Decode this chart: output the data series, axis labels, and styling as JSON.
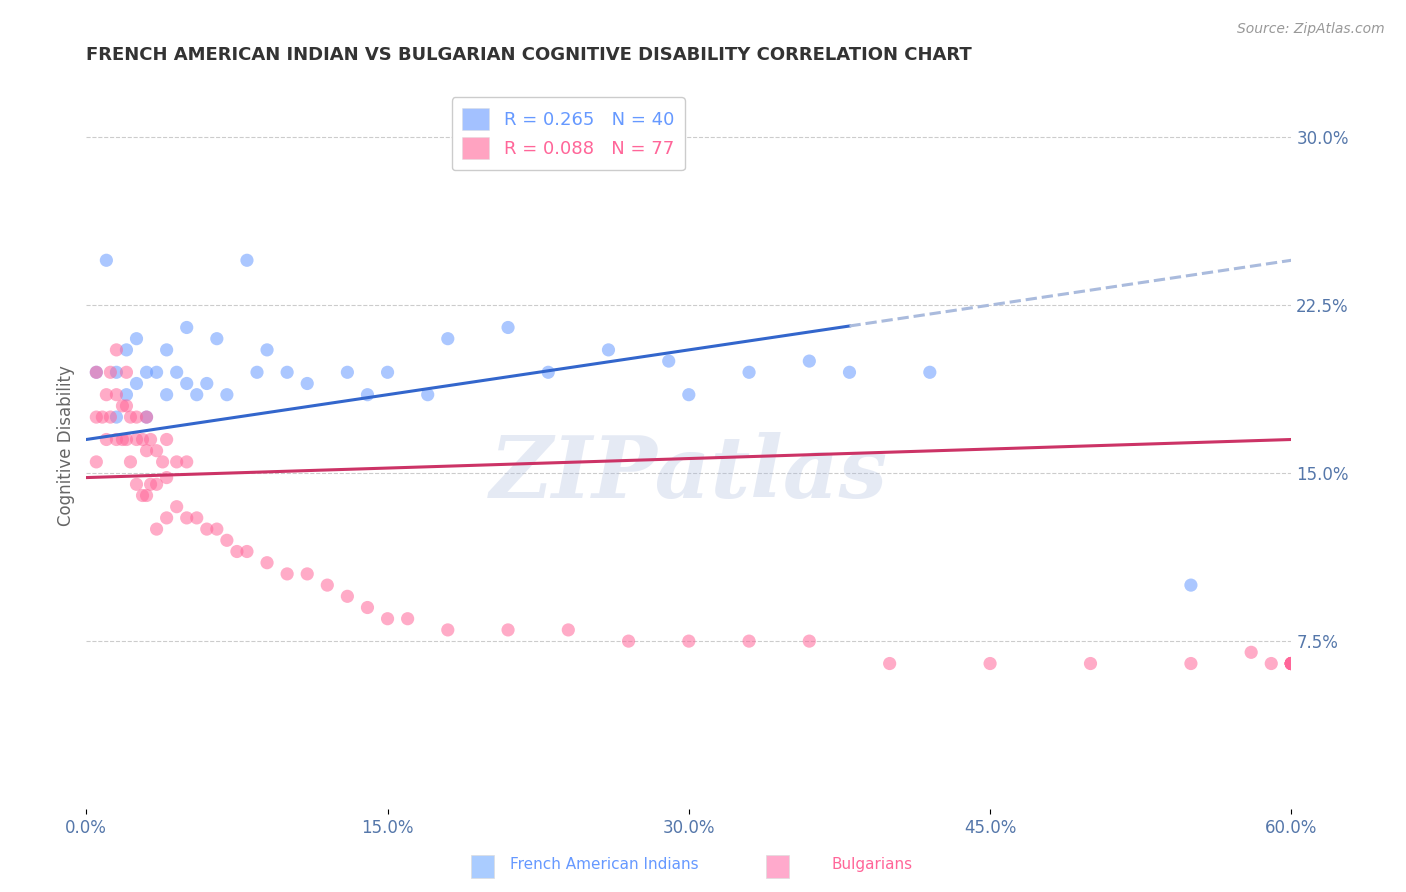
{
  "title": "FRENCH AMERICAN INDIAN VS BULGARIAN COGNITIVE DISABILITY CORRELATION CHART",
  "source": "Source: ZipAtlas.com",
  "ylabel": "Cognitive Disability",
  "xlim": [
    0.0,
    0.6
  ],
  "ylim": [
    0.0,
    0.325
  ],
  "xticks": [
    0.0,
    0.15,
    0.3,
    0.45,
    0.6
  ],
  "xticklabels": [
    "0.0%",
    "15.0%",
    "30.0%",
    "45.0%",
    "60.0%"
  ],
  "yticks": [
    0.075,
    0.15,
    0.225,
    0.3
  ],
  "yticklabels": [
    "7.5%",
    "15.0%",
    "22.5%",
    "30.0%"
  ],
  "legend_entries": [
    {
      "label": "R = 0.265   N = 40",
      "color": "#6699ff"
    },
    {
      "label": "R = 0.088   N = 77",
      "color": "#ff6699"
    }
  ],
  "scatter_blue": {
    "x": [
      0.005,
      0.01,
      0.015,
      0.015,
      0.02,
      0.02,
      0.025,
      0.025,
      0.03,
      0.03,
      0.035,
      0.04,
      0.04,
      0.045,
      0.05,
      0.05,
      0.055,
      0.06,
      0.065,
      0.07,
      0.08,
      0.085,
      0.09,
      0.1,
      0.11,
      0.13,
      0.14,
      0.15,
      0.17,
      0.18,
      0.21,
      0.23,
      0.26,
      0.29,
      0.3,
      0.33,
      0.36,
      0.38,
      0.42,
      0.55
    ],
    "y": [
      0.195,
      0.245,
      0.195,
      0.175,
      0.205,
      0.185,
      0.21,
      0.19,
      0.195,
      0.175,
      0.195,
      0.205,
      0.185,
      0.195,
      0.215,
      0.19,
      0.185,
      0.19,
      0.21,
      0.185,
      0.245,
      0.195,
      0.205,
      0.195,
      0.19,
      0.195,
      0.185,
      0.195,
      0.185,
      0.21,
      0.215,
      0.195,
      0.205,
      0.2,
      0.185,
      0.195,
      0.2,
      0.195,
      0.195,
      0.1
    ],
    "color": "#6699ff",
    "alpha": 0.55,
    "size": 90
  },
  "scatter_pink": {
    "x": [
      0.005,
      0.005,
      0.005,
      0.008,
      0.01,
      0.01,
      0.012,
      0.012,
      0.015,
      0.015,
      0.015,
      0.018,
      0.018,
      0.02,
      0.02,
      0.02,
      0.022,
      0.022,
      0.025,
      0.025,
      0.025,
      0.028,
      0.028,
      0.03,
      0.03,
      0.03,
      0.032,
      0.032,
      0.035,
      0.035,
      0.035,
      0.038,
      0.04,
      0.04,
      0.04,
      0.045,
      0.045,
      0.05,
      0.05,
      0.055,
      0.06,
      0.065,
      0.07,
      0.075,
      0.08,
      0.09,
      0.1,
      0.11,
      0.12,
      0.13,
      0.14,
      0.15,
      0.16,
      0.18,
      0.21,
      0.24,
      0.27,
      0.3,
      0.33,
      0.36,
      0.4,
      0.45,
      0.5,
      0.55,
      0.58,
      0.59,
      0.6,
      0.6,
      0.6,
      0.6,
      0.6,
      0.6,
      0.6,
      0.6,
      0.6,
      0.6,
      0.6
    ],
    "y": [
      0.195,
      0.175,
      0.155,
      0.175,
      0.185,
      0.165,
      0.195,
      0.175,
      0.205,
      0.185,
      0.165,
      0.18,
      0.165,
      0.195,
      0.18,
      0.165,
      0.175,
      0.155,
      0.175,
      0.165,
      0.145,
      0.165,
      0.14,
      0.175,
      0.16,
      0.14,
      0.165,
      0.145,
      0.16,
      0.145,
      0.125,
      0.155,
      0.165,
      0.148,
      0.13,
      0.155,
      0.135,
      0.155,
      0.13,
      0.13,
      0.125,
      0.125,
      0.12,
      0.115,
      0.115,
      0.11,
      0.105,
      0.105,
      0.1,
      0.095,
      0.09,
      0.085,
      0.085,
      0.08,
      0.08,
      0.08,
      0.075,
      0.075,
      0.075,
      0.075,
      0.065,
      0.065,
      0.065,
      0.065,
      0.07,
      0.065,
      0.065,
      0.065,
      0.065,
      0.065,
      0.065,
      0.065,
      0.065,
      0.065,
      0.065,
      0.065,
      0.065
    ],
    "color": "#ff6699",
    "alpha": 0.55,
    "size": 90
  },
  "trend_blue": {
    "x_start": 0.0,
    "x_end": 0.6,
    "y_start": 0.165,
    "y_end": 0.245,
    "color": "#3366cc",
    "linewidth": 2.2,
    "solid_end": 0.38,
    "dashed_start": 0.38
  },
  "trend_pink": {
    "x_start": 0.0,
    "x_end": 0.6,
    "y_start": 0.148,
    "y_end": 0.165,
    "color": "#cc3366",
    "linewidth": 2.2
  },
  "watermark": "ZIPatlas",
  "background_color": "#ffffff",
  "grid_color": "#cccccc",
  "tick_color": "#5577aa",
  "title_color": "#333333"
}
